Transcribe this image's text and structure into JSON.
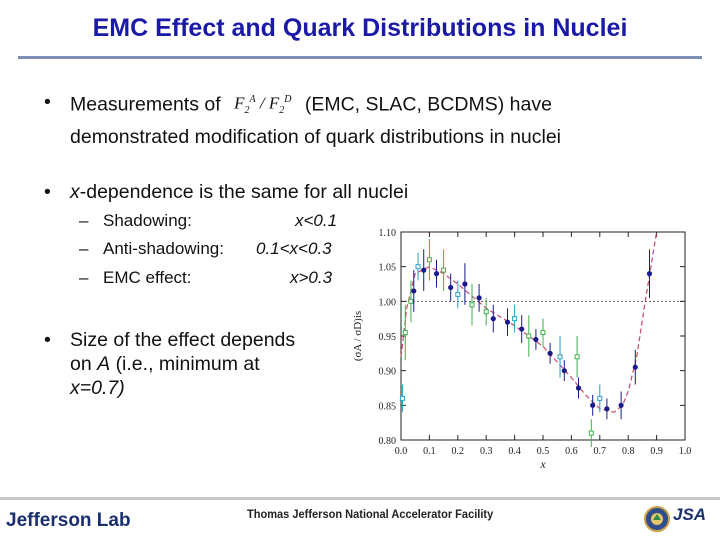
{
  "title": "EMC Effect and Quark Distributions in Nuclei",
  "bullet1": {
    "pre": "Measurements of",
    "formula": {
      "f1": "F",
      "sub1": "2",
      "sup1": "A",
      "slash": "/",
      "f2": "F",
      "sub2": "2",
      "sup2": "D"
    },
    "post": "(EMC, SLAC, BCDMS) have",
    "line2": "demonstrated modification of quark distributions in nuclei"
  },
  "bullet2": {
    "x": "x",
    "rest": "-dependence is the same for all nuclei"
  },
  "subitems": [
    {
      "dash": "–",
      "label": "Shadowing:",
      "range": "x<0.1"
    },
    {
      "dash": "–",
      "label": "Anti-shadowing:",
      "range": "0.1<x<0.3"
    },
    {
      "dash": "–",
      "label": "EMC effect:",
      "range": "x>0.3"
    }
  ],
  "bullet3": {
    "line1": "Size of the effect depends",
    "line2_pre": "on",
    "line2_A": "A",
    "line2_post": "(i.e., minimum at",
    "line3": "x=0.7)"
  },
  "chart_data": {
    "type": "scatter",
    "title": "",
    "xlabel": "x",
    "ylabel": "(σA / σD)is",
    "xlim": [
      0.0,
      1.0
    ],
    "ylim": [
      0.8,
      1.1
    ],
    "xticks": [
      "0.0",
      "0.1",
      "0.2",
      "0.3",
      "0.4",
      "0.5",
      "0.6",
      "0.7",
      "0.8",
      "0.9",
      "1.0"
    ],
    "yticks": [
      "0.80",
      "0.85",
      "0.90",
      "0.95",
      "1.00",
      "1.05",
      "1.10"
    ],
    "reference_line": 1.0,
    "series": [
      {
        "name": "filled",
        "points": [
          {
            "x": 0.045,
            "y": 1.015,
            "err": 0.03
          },
          {
            "x": 0.08,
            "y": 1.045,
            "err": 0.03
          },
          {
            "x": 0.125,
            "y": 1.04,
            "err": 0.02
          },
          {
            "x": 0.175,
            "y": 1.02,
            "err": 0.02
          },
          {
            "x": 0.225,
            "y": 1.025,
            "err": 0.03
          },
          {
            "x": 0.275,
            "y": 1.005,
            "err": 0.02
          },
          {
            "x": 0.325,
            "y": 0.975,
            "err": 0.02
          },
          {
            "x": 0.375,
            "y": 0.97,
            "err": 0.02
          },
          {
            "x": 0.425,
            "y": 0.96,
            "err": 0.02
          },
          {
            "x": 0.475,
            "y": 0.945,
            "err": 0.015
          },
          {
            "x": 0.525,
            "y": 0.925,
            "err": 0.015
          },
          {
            "x": 0.575,
            "y": 0.9,
            "err": 0.015
          },
          {
            "x": 0.625,
            "y": 0.875,
            "err": 0.015
          },
          {
            "x": 0.675,
            "y": 0.85,
            "err": 0.015
          },
          {
            "x": 0.725,
            "y": 0.845,
            "err": 0.015
          },
          {
            "x": 0.775,
            "y": 0.85,
            "err": 0.02
          },
          {
            "x": 0.825,
            "y": 0.905,
            "err": 0.025
          },
          {
            "x": 0.875,
            "y": 1.04,
            "err": 0.035
          }
        ]
      },
      {
        "name": "open",
        "points": [
          {
            "x": 0.005,
            "y": 0.86,
            "err": 0.02
          },
          {
            "x": 0.015,
            "y": 0.955,
            "err": 0.04
          },
          {
            "x": 0.035,
            "y": 1.0,
            "err": 0.03
          },
          {
            "x": 0.06,
            "y": 1.05,
            "err": 0.02
          },
          {
            "x": 0.1,
            "y": 1.06,
            "err": 0.03
          },
          {
            "x": 0.15,
            "y": 1.045,
            "err": 0.03
          },
          {
            "x": 0.2,
            "y": 1.01,
            "err": 0.02
          },
          {
            "x": 0.25,
            "y": 0.995,
            "err": 0.03
          },
          {
            "x": 0.3,
            "y": 0.985,
            "err": 0.02
          },
          {
            "x": 0.4,
            "y": 0.975,
            "err": 0.02
          },
          {
            "x": 0.45,
            "y": 0.95,
            "err": 0.03
          },
          {
            "x": 0.5,
            "y": 0.955,
            "err": 0.02
          },
          {
            "x": 0.56,
            "y": 0.92,
            "err": 0.03
          },
          {
            "x": 0.62,
            "y": 0.92,
            "err": 0.03
          },
          {
            "x": 0.67,
            "y": 0.81,
            "err": 0.02
          },
          {
            "x": 0.7,
            "y": 0.86,
            "err": 0.02
          }
        ]
      }
    ],
    "fit_curve": [
      [
        0.0,
        0.92
      ],
      [
        0.02,
        0.99
      ],
      [
        0.05,
        1.04
      ],
      [
        0.1,
        1.05
      ],
      [
        0.15,
        1.04
      ],
      [
        0.2,
        1.025
      ],
      [
        0.3,
        0.99
      ],
      [
        0.4,
        0.965
      ],
      [
        0.5,
        0.935
      ],
      [
        0.6,
        0.89
      ],
      [
        0.65,
        0.865
      ],
      [
        0.7,
        0.845
      ],
      [
        0.75,
        0.84
      ],
      [
        0.78,
        0.85
      ],
      [
        0.8,
        0.87
      ],
      [
        0.83,
        0.92
      ],
      [
        0.86,
        1.0
      ],
      [
        0.9,
        1.1
      ]
    ],
    "colors": {
      "filled": "#1a1a8a",
      "open": "#3bb24a",
      "open_alt": "#2a9ec8",
      "curve": "#c84a6a"
    }
  },
  "footer": {
    "logo": "Jefferson Lab",
    "facility": "Thomas Jefferson National Accelerator Facility",
    "jsa": "JSA"
  }
}
